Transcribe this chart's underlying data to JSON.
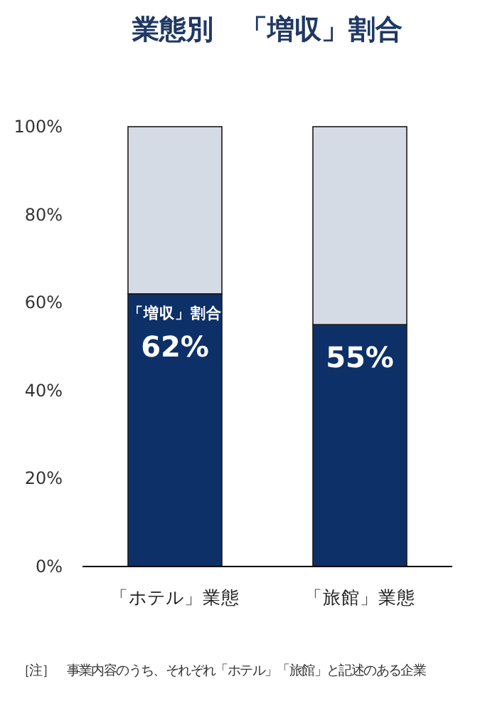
{
  "chart_data": {
    "type": "bar",
    "title": "業態別　「増収」割合",
    "stacked": true,
    "categories": [
      "「ホテル」業態",
      "「旅館」業態"
    ],
    "series": [
      {
        "color": "#0e3068",
        "values": [
          62,
          55
        ],
        "value_labels": [
          "62%",
          "55%"
        ]
      },
      {
        "color": "#d5dbe4",
        "values": [
          38,
          45
        ]
      }
    ],
    "ylim": [
      0,
      100
    ],
    "yticks": [
      {
        "value": 0,
        "label": "0%"
      },
      {
        "value": 20,
        "label": "20%"
      },
      {
        "value": 40,
        "label": "40%"
      },
      {
        "value": 60,
        "label": "60%"
      },
      {
        "value": 80,
        "label": "80%"
      },
      {
        "value": 100,
        "label": "100%"
      }
    ],
    "grid": false,
    "annotations": [
      {
        "text": "「増収」割合",
        "x": "「ホテル」業態",
        "y": 62
      },
      "［注］　事業内容のうち、それぞれ「ホテル」「旅館」と記述のある企業"
    ]
  }
}
